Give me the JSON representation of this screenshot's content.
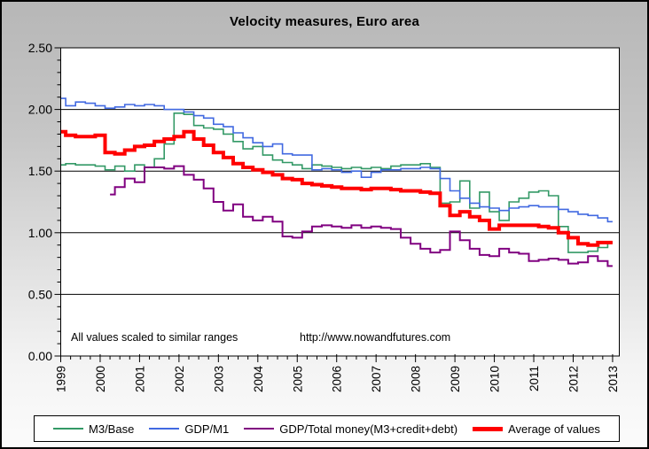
{
  "chart_data": {
    "type": "line",
    "title": "Velocity measures, Euro area",
    "xlabel": "",
    "ylabel": "",
    "xlim": [
      1999,
      2013.17
    ],
    "ylim": [
      0,
      2.5
    ],
    "grid": true,
    "legend_position": "bottom",
    "ytick_labels": [
      "2.50",
      "2.00",
      "1.50",
      "1.00",
      "0.50",
      "0.00"
    ],
    "ytick_values": [
      2.5,
      2.0,
      1.5,
      1.0,
      0.5,
      0.0
    ],
    "ytick_minor_step": 0.1,
    "xtick_labels": [
      "1999",
      "2000",
      "2001",
      "2002",
      "2003",
      "2004",
      "2005",
      "2006",
      "2007",
      "2008",
      "2009",
      "2010",
      "2011",
      "2012",
      "2013"
    ],
    "xtick_minor_step": 0.25,
    "x": [
      1999,
      1999.25,
      1999.5,
      1999.75,
      2000,
      2000.25,
      2000.5,
      2000.75,
      2001,
      2001.25,
      2001.5,
      2001.75,
      2002,
      2002.25,
      2002.5,
      2002.75,
      2003,
      2003.25,
      2003.5,
      2003.75,
      2004,
      2004.25,
      2004.5,
      2004.75,
      2005,
      2005.25,
      2005.5,
      2005.75,
      2006,
      2006.25,
      2006.5,
      2006.75,
      2007,
      2007.25,
      2007.5,
      2007.75,
      2008,
      2008.25,
      2008.5,
      2008.75,
      2009,
      2009.25,
      2009.5,
      2009.75,
      2010,
      2010.25,
      2010.5,
      2010.75,
      2011,
      2011.25,
      2011.5,
      2011.75,
      2012,
      2012.25,
      2012.5,
      2012.75,
      2013
    ],
    "series": [
      {
        "name": "M3/Base",
        "color": "#339966",
        "line_width": 1.6,
        "values": [
          1.55,
          1.56,
          1.55,
          1.55,
          1.54,
          1.51,
          1.54,
          1.5,
          1.55,
          1.53,
          1.6,
          1.72,
          1.97,
          1.96,
          1.87,
          1.85,
          1.84,
          1.8,
          1.74,
          1.68,
          1.7,
          1.63,
          1.59,
          1.57,
          1.55,
          1.52,
          1.55,
          1.54,
          1.53,
          1.52,
          1.53,
          1.52,
          1.53,
          1.52,
          1.54,
          1.55,
          1.55,
          1.56,
          1.53,
          1.24,
          1.25,
          1.42,
          1.2,
          1.33,
          1.17,
          1.1,
          1.25,
          1.28,
          1.33,
          1.34,
          1.3,
          1.05,
          0.84,
          0.84,
          0.85,
          0.88,
          0.92
        ]
      },
      {
        "name": "GDP/M1",
        "color": "#4169e1",
        "line_width": 1.6,
        "values": [
          2.09,
          2.03,
          2.06,
          2.05,
          2.03,
          2.01,
          2.02,
          2.04,
          2.03,
          2.04,
          2.03,
          2.0,
          2.0,
          1.98,
          1.95,
          1.93,
          1.88,
          1.86,
          1.81,
          1.77,
          1.73,
          1.7,
          1.72,
          1.64,
          1.63,
          1.63,
          1.51,
          1.52,
          1.51,
          1.49,
          1.5,
          1.45,
          1.49,
          1.51,
          1.51,
          1.52,
          1.52,
          1.53,
          1.52,
          1.44,
          1.34,
          1.28,
          1.24,
          1.21,
          1.2,
          1.18,
          1.2,
          1.21,
          1.22,
          1.21,
          1.21,
          1.19,
          1.17,
          1.15,
          1.14,
          1.12,
          1.09
        ]
      },
      {
        "name": "GDP/Total money(M3+credit+debt)",
        "color": "#800080",
        "line_width": 2,
        "values": [
          null,
          null,
          null,
          null,
          null,
          1.31,
          1.37,
          1.44,
          1.41,
          1.53,
          1.53,
          1.52,
          1.54,
          1.47,
          1.43,
          1.36,
          1.25,
          1.18,
          1.23,
          1.13,
          1.1,
          1.13,
          1.09,
          0.97,
          0.96,
          1.01,
          1.05,
          1.06,
          1.05,
          1.04,
          1.06,
          1.04,
          1.05,
          1.04,
          1.03,
          0.96,
          0.91,
          0.87,
          0.84,
          0.86,
          1.01,
          0.94,
          0.87,
          0.82,
          0.81,
          0.87,
          0.84,
          0.83,
          0.77,
          0.78,
          0.79,
          0.78,
          0.75,
          0.76,
          0.81,
          0.77,
          0.73
        ]
      },
      {
        "name": "Average of values",
        "color": "#ff0000",
        "line_width": 4,
        "values": [
          1.82,
          1.79,
          1.78,
          1.78,
          1.79,
          1.65,
          1.64,
          1.67,
          1.7,
          1.71,
          1.74,
          1.76,
          1.78,
          1.82,
          1.76,
          1.71,
          1.65,
          1.61,
          1.56,
          1.53,
          1.51,
          1.49,
          1.47,
          1.44,
          1.43,
          1.4,
          1.39,
          1.38,
          1.37,
          1.36,
          1.36,
          1.35,
          1.36,
          1.36,
          1.35,
          1.34,
          1.34,
          1.33,
          1.32,
          1.22,
          1.14,
          1.17,
          1.13,
          1.1,
          1.03,
          1.06,
          1.06,
          1.06,
          1.06,
          1.05,
          1.04,
          1.0,
          0.96,
          0.91,
          0.9,
          0.92,
          0.92
        ]
      }
    ],
    "annotations": [
      {
        "text": "All values scaled to similar ranges"
      },
      {
        "text": "http://www.nowandfutures.com"
      }
    ]
  }
}
